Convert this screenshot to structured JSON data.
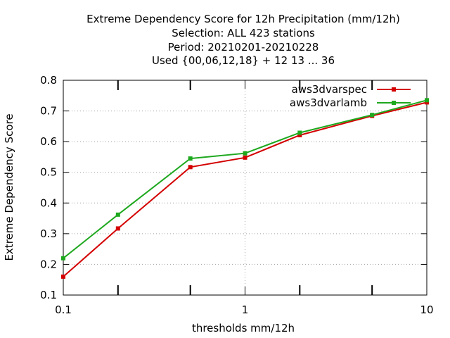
{
  "chart_data": {
    "type": "line",
    "title_lines": [
      "Extreme Dependency Score  for 12h Precipitation (mm/12h)",
      "Selection: ALL    423 stations",
      "Period: 20210201-20210228",
      "Used {00,06,12,18} + 12 13 ... 36"
    ],
    "xlabel": "thresholds mm/12h",
    "ylabel": "Extreme Dependency Score",
    "x_scale": "log",
    "xlim": [
      0.1,
      10
    ],
    "ylim": [
      0.1,
      0.8
    ],
    "x_tick_labels": [
      {
        "value": 0.1,
        "label": "0.1"
      },
      {
        "value": 1,
        "label": "1"
      },
      {
        "value": 10,
        "label": "10"
      }
    ],
    "x_minor_ticks": [
      0.2,
      0.5,
      2,
      5
    ],
    "y_ticks": [
      0.1,
      0.2,
      0.3,
      0.4,
      0.5,
      0.6,
      0.7,
      0.8
    ],
    "y_tick_labels": [
      "0.1",
      "0.2",
      "0.3",
      "0.4",
      "0.5",
      "0.6",
      "0.7",
      "0.8"
    ],
    "grid": true,
    "legend_position": "top-right",
    "series": [
      {
        "name": "aws3dvarspec",
        "color": "#d40000",
        "x": [
          0.1,
          0.2,
          0.5,
          1,
          2,
          5,
          10
        ],
        "y": [
          0.16,
          0.317,
          0.517,
          0.548,
          0.621,
          0.684,
          0.728
        ]
      },
      {
        "name": "aws3dvarlamb",
        "color": "#1ea81e",
        "x": [
          0.1,
          0.2,
          0.5,
          1,
          2,
          5,
          10
        ],
        "y": [
          0.22,
          0.362,
          0.545,
          0.562,
          0.629,
          0.687,
          0.735
        ]
      }
    ]
  }
}
